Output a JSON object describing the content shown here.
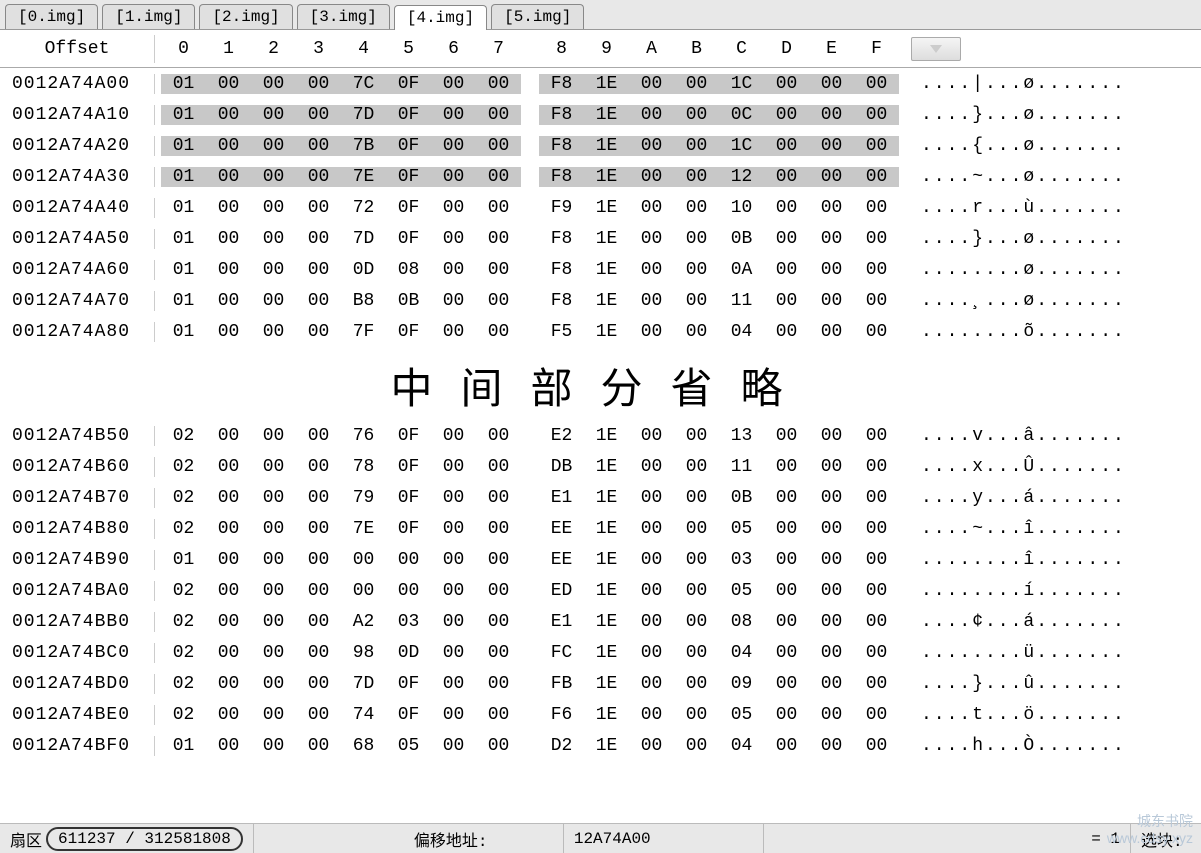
{
  "tabs": {
    "items": [
      "[0.img]",
      "[1.img]",
      "[2.img]",
      "[3.img]",
      "[4.img]",
      "[5.img]"
    ],
    "active_index": 4
  },
  "header": {
    "offset_label": "Offset",
    "hex_cols": [
      "0",
      "1",
      "2",
      "3",
      "4",
      "5",
      "6",
      "7",
      "8",
      "9",
      "A",
      "B",
      "C",
      "D",
      "E",
      "F"
    ]
  },
  "rows_top": [
    {
      "offset": "0012A74A00",
      "bytes": [
        "01",
        "00",
        "00",
        "00",
        "7C",
        "0F",
        "00",
        "00",
        "F8",
        "1E",
        "00",
        "00",
        "1C",
        "00",
        "00",
        "00"
      ],
      "ascii": "....|...ø.......",
      "selected": true
    },
    {
      "offset": "0012A74A10",
      "bytes": [
        "01",
        "00",
        "00",
        "00",
        "7D",
        "0F",
        "00",
        "00",
        "F8",
        "1E",
        "00",
        "00",
        "0C",
        "00",
        "00",
        "00"
      ],
      "ascii": "....}...ø.......",
      "selected": true
    },
    {
      "offset": "0012A74A20",
      "bytes": [
        "01",
        "00",
        "00",
        "00",
        "7B",
        "0F",
        "00",
        "00",
        "F8",
        "1E",
        "00",
        "00",
        "1C",
        "00",
        "00",
        "00"
      ],
      "ascii": "....{...ø.......",
      "selected": true
    },
    {
      "offset": "0012A74A30",
      "bytes": [
        "01",
        "00",
        "00",
        "00",
        "7E",
        "0F",
        "00",
        "00",
        "F8",
        "1E",
        "00",
        "00",
        "12",
        "00",
        "00",
        "00"
      ],
      "ascii": "....~...ø.......",
      "selected": true
    },
    {
      "offset": "0012A74A40",
      "bytes": [
        "01",
        "00",
        "00",
        "00",
        "72",
        "0F",
        "00",
        "00",
        "F9",
        "1E",
        "00",
        "00",
        "10",
        "00",
        "00",
        "00"
      ],
      "ascii": "....r...ù.......",
      "selected": false
    },
    {
      "offset": "0012A74A50",
      "bytes": [
        "01",
        "00",
        "00",
        "00",
        "7D",
        "0F",
        "00",
        "00",
        "F8",
        "1E",
        "00",
        "00",
        "0B",
        "00",
        "00",
        "00"
      ],
      "ascii": "....}...ø.......",
      "selected": false
    },
    {
      "offset": "0012A74A60",
      "bytes": [
        "01",
        "00",
        "00",
        "00",
        "0D",
        "08",
        "00",
        "00",
        "F8",
        "1E",
        "00",
        "00",
        "0A",
        "00",
        "00",
        "00"
      ],
      "ascii": "........ø.......",
      "selected": false
    },
    {
      "offset": "0012A74A70",
      "bytes": [
        "01",
        "00",
        "00",
        "00",
        "B8",
        "0B",
        "00",
        "00",
        "F8",
        "1E",
        "00",
        "00",
        "11",
        "00",
        "00",
        "00"
      ],
      "ascii": "....¸...ø.......",
      "selected": false
    },
    {
      "offset": "0012A74A80",
      "bytes": [
        "01",
        "00",
        "00",
        "00",
        "7F",
        "0F",
        "00",
        "00",
        "F5",
        "1E",
        "00",
        "00",
        "04",
        "00",
        "00",
        "00"
      ],
      "ascii": "........õ.......",
      "selected": false
    }
  ],
  "omit_text": "中间部分省略",
  "rows_bottom": [
    {
      "offset": "0012A74B50",
      "bytes": [
        "02",
        "00",
        "00",
        "00",
        "76",
        "0F",
        "00",
        "00",
        "E2",
        "1E",
        "00",
        "00",
        "13",
        "00",
        "00",
        "00"
      ],
      "ascii": "....v...â.......",
      "selected": false
    },
    {
      "offset": "0012A74B60",
      "bytes": [
        "02",
        "00",
        "00",
        "00",
        "78",
        "0F",
        "00",
        "00",
        "DB",
        "1E",
        "00",
        "00",
        "11",
        "00",
        "00",
        "00"
      ],
      "ascii": "....x...Û.......",
      "selected": false
    },
    {
      "offset": "0012A74B70",
      "bytes": [
        "02",
        "00",
        "00",
        "00",
        "79",
        "0F",
        "00",
        "00",
        "E1",
        "1E",
        "00",
        "00",
        "0B",
        "00",
        "00",
        "00"
      ],
      "ascii": "....y...á.......",
      "selected": false
    },
    {
      "offset": "0012A74B80",
      "bytes": [
        "02",
        "00",
        "00",
        "00",
        "7E",
        "0F",
        "00",
        "00",
        "EE",
        "1E",
        "00",
        "00",
        "05",
        "00",
        "00",
        "00"
      ],
      "ascii": "....~...î.......",
      "selected": false
    },
    {
      "offset": "0012A74B90",
      "bytes": [
        "01",
        "00",
        "00",
        "00",
        "00",
        "00",
        "00",
        "00",
        "EE",
        "1E",
        "00",
        "00",
        "03",
        "00",
        "00",
        "00"
      ],
      "ascii": "........î.......",
      "selected": false
    },
    {
      "offset": "0012A74BA0",
      "bytes": [
        "02",
        "00",
        "00",
        "00",
        "00",
        "00",
        "00",
        "00",
        "ED",
        "1E",
        "00",
        "00",
        "05",
        "00",
        "00",
        "00"
      ],
      "ascii": "........í.......",
      "selected": false
    },
    {
      "offset": "0012A74BB0",
      "bytes": [
        "02",
        "00",
        "00",
        "00",
        "A2",
        "03",
        "00",
        "00",
        "E1",
        "1E",
        "00",
        "00",
        "08",
        "00",
        "00",
        "00"
      ],
      "ascii": "....¢...á.......",
      "selected": false
    },
    {
      "offset": "0012A74BC0",
      "bytes": [
        "02",
        "00",
        "00",
        "00",
        "98",
        "0D",
        "00",
        "00",
        "FC",
        "1E",
        "00",
        "00",
        "04",
        "00",
        "00",
        "00"
      ],
      "ascii": "........ü.......",
      "selected": false
    },
    {
      "offset": "0012A74BD0",
      "bytes": [
        "02",
        "00",
        "00",
        "00",
        "7D",
        "0F",
        "00",
        "00",
        "FB",
        "1E",
        "00",
        "00",
        "09",
        "00",
        "00",
        "00"
      ],
      "ascii": "....}...û.......",
      "selected": false
    },
    {
      "offset": "0012A74BE0",
      "bytes": [
        "02",
        "00",
        "00",
        "00",
        "74",
        "0F",
        "00",
        "00",
        "F6",
        "1E",
        "00",
        "00",
        "05",
        "00",
        "00",
        "00"
      ],
      "ascii": "....t...ö.......",
      "selected": false
    },
    {
      "offset": "0012A74BF0",
      "bytes": [
        "01",
        "00",
        "00",
        "00",
        "68",
        "05",
        "00",
        "00",
        "D2",
        "1E",
        "00",
        "00",
        "04",
        "00",
        "00",
        "00"
      ],
      "ascii": "....h...Ò.......",
      "selected": false
    }
  ],
  "status": {
    "sector_label": "扇区",
    "sector_value": "611237 / 312581808",
    "offset_label": "偏移地址:",
    "offset_value": "12A74A00",
    "equals_value": "= 1",
    "block_label": "选块:"
  },
  "watermark": {
    "line1": "城东书院",
    "line2": "www.cdsy.xyz"
  },
  "colors": {
    "selection_bg": "#c8c8c8",
    "tab_bg": "#e0e0e0",
    "tab_active_bg": "#ffffff",
    "statusbar_bg": "#e8e8e8",
    "border": "#aaaaaa"
  }
}
